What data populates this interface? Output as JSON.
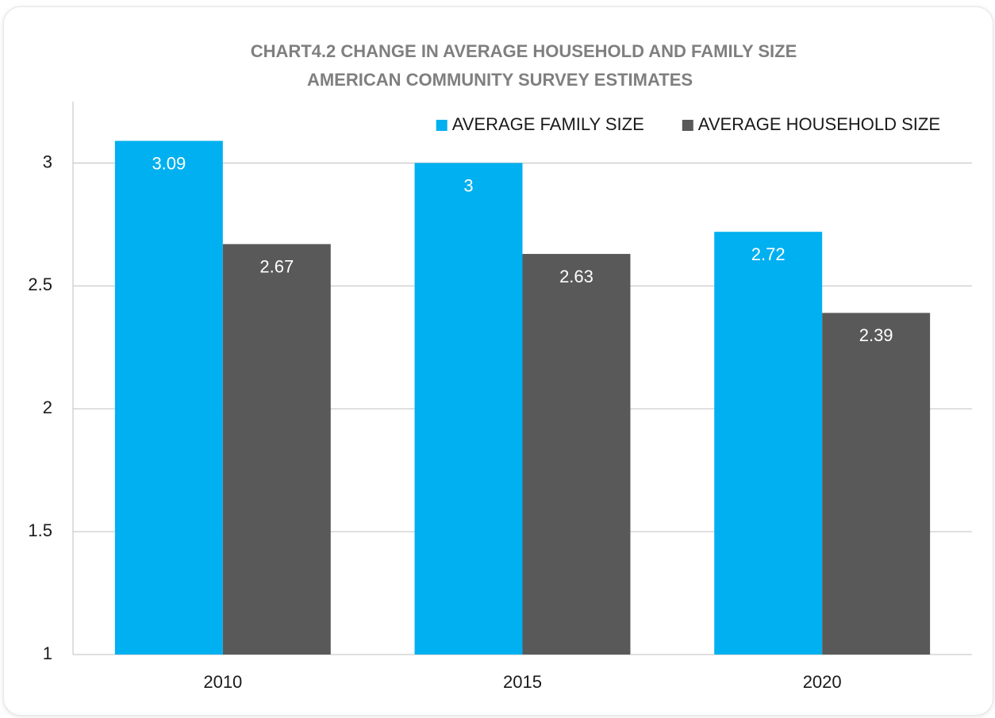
{
  "chart_data": {
    "type": "bar",
    "title": "CHART4.2 CHANGE IN AVERAGE HOUSEHOLD AND FAMILY SIZE",
    "subtitle": "AMERICAN COMMUNITY SURVEY ESTIMATES",
    "categories": [
      "2010",
      "2015",
      "2020"
    ],
    "series": [
      {
        "name": "AVERAGE FAMILY SIZE",
        "color": "#00b0f0",
        "values": [
          3.09,
          3,
          2.72
        ]
      },
      {
        "name": "AVERAGE HOUSEHOLD SIZE",
        "color": "#595959",
        "values": [
          2.67,
          2.63,
          2.39
        ]
      }
    ],
    "ylim": [
      1,
      3.25
    ],
    "yticks": [
      1,
      1.5,
      2,
      2.5,
      3
    ],
    "grid": true,
    "legend": "top-right"
  }
}
